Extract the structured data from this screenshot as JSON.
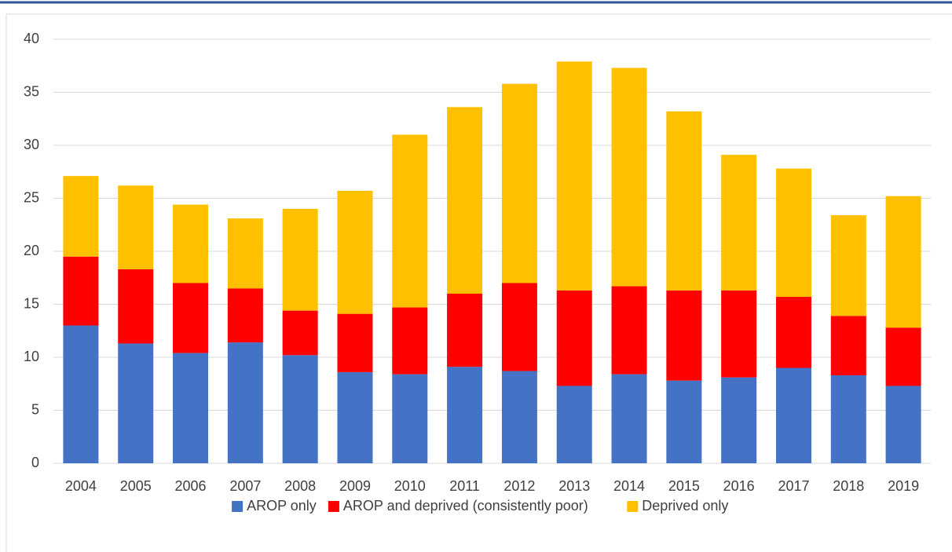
{
  "chart_data": {
    "type": "stacked_bar",
    "categories": [
      "2004",
      "2005",
      "2006",
      "2007",
      "2008",
      "2009",
      "2010",
      "2011",
      "2012",
      "2013",
      "2014",
      "2015",
      "2016",
      "2017",
      "2018",
      "2019"
    ],
    "series": [
      {
        "name": "AROP only",
        "color": "#4472c4",
        "values": [
          13.0,
          11.3,
          10.4,
          11.4,
          10.2,
          8.6,
          8.4,
          9.1,
          8.7,
          7.3,
          8.4,
          7.8,
          8.1,
          9.0,
          8.3,
          7.3
        ]
      },
      {
        "name": "AROP and deprived (consistently poor)",
        "color": "#ff0000",
        "values": [
          6.5,
          7.0,
          6.6,
          5.1,
          4.2,
          5.5,
          6.3,
          6.9,
          8.3,
          9.0,
          8.3,
          8.5,
          8.2,
          6.7,
          5.6,
          5.5
        ]
      },
      {
        "name": "Deprived only",
        "color": "#ffc000",
        "values": [
          7.6,
          7.9,
          7.4,
          6.6,
          9.6,
          11.6,
          16.3,
          17.6,
          18.8,
          21.6,
          20.6,
          16.9,
          12.8,
          12.1,
          9.5,
          12.4
        ]
      }
    ],
    "ylim": [
      0,
      40
    ],
    "yticks": [
      0,
      5,
      10,
      15,
      20,
      25,
      30,
      35,
      40
    ],
    "grid": true,
    "legend": "bottom"
  }
}
